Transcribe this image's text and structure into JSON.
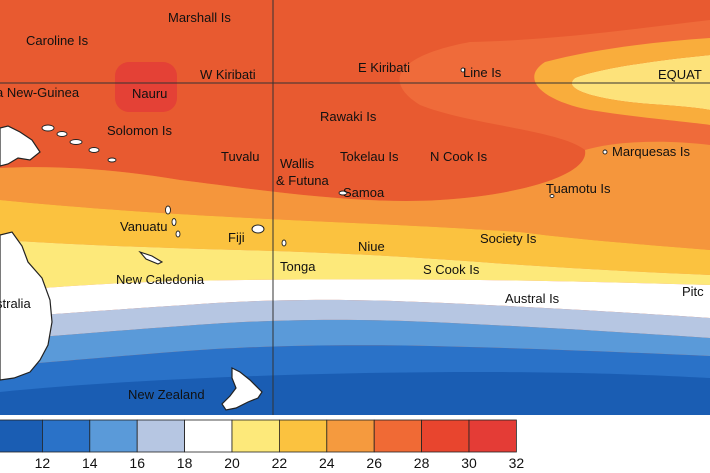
{
  "map": {
    "labels": {
      "marshall": "Marshall Is",
      "caroline": "Caroline Is",
      "png": "a New-Guinea",
      "nauru": "Nauru",
      "wkiribati": "W Kiribati",
      "ekiribati": "E Kiribati",
      "line": "Line Is",
      "equator": "EQUAT",
      "solomon": "Solomon Is",
      "rawaki": "Rawaki Is",
      "tuvalu": "Tuvalu",
      "wallis1": "Wallis",
      "wallis2": "& Futuna",
      "tokelau": "Tokelau Is",
      "ncook": "N Cook Is",
      "marquesas": "Marquesas Is",
      "samoa": "Samoa",
      "tuamotu": "Tuamotu Is",
      "vanuatu": "Vanuatu",
      "fiji": "Fiji",
      "niue": "Niue",
      "society": "Society Is",
      "scook": "S Cook Is",
      "tonga": "Tonga",
      "newcaledonia": "New Caledonia",
      "australia": "stralia",
      "austral": "Austral Is",
      "pitcairn": "Pitc",
      "newzealand": "New Zealand"
    }
  },
  "legend": {
    "colors": [
      "#1a5db3",
      "#2a72c8",
      "#5a9ad9",
      "#b6c6e2",
      "#ffffff",
      "#fde97a",
      "#fbc23f",
      "#f59a3e",
      "#f06a35",
      "#e8452e",
      "#e43c36"
    ],
    "ticks": [
      "12",
      "14",
      "16",
      "18",
      "20",
      "22",
      "24",
      "26",
      "28",
      "30",
      "32"
    ],
    "tick_values": [
      12,
      14,
      16,
      18,
      20,
      22,
      24,
      26,
      28,
      30,
      32
    ]
  }
}
